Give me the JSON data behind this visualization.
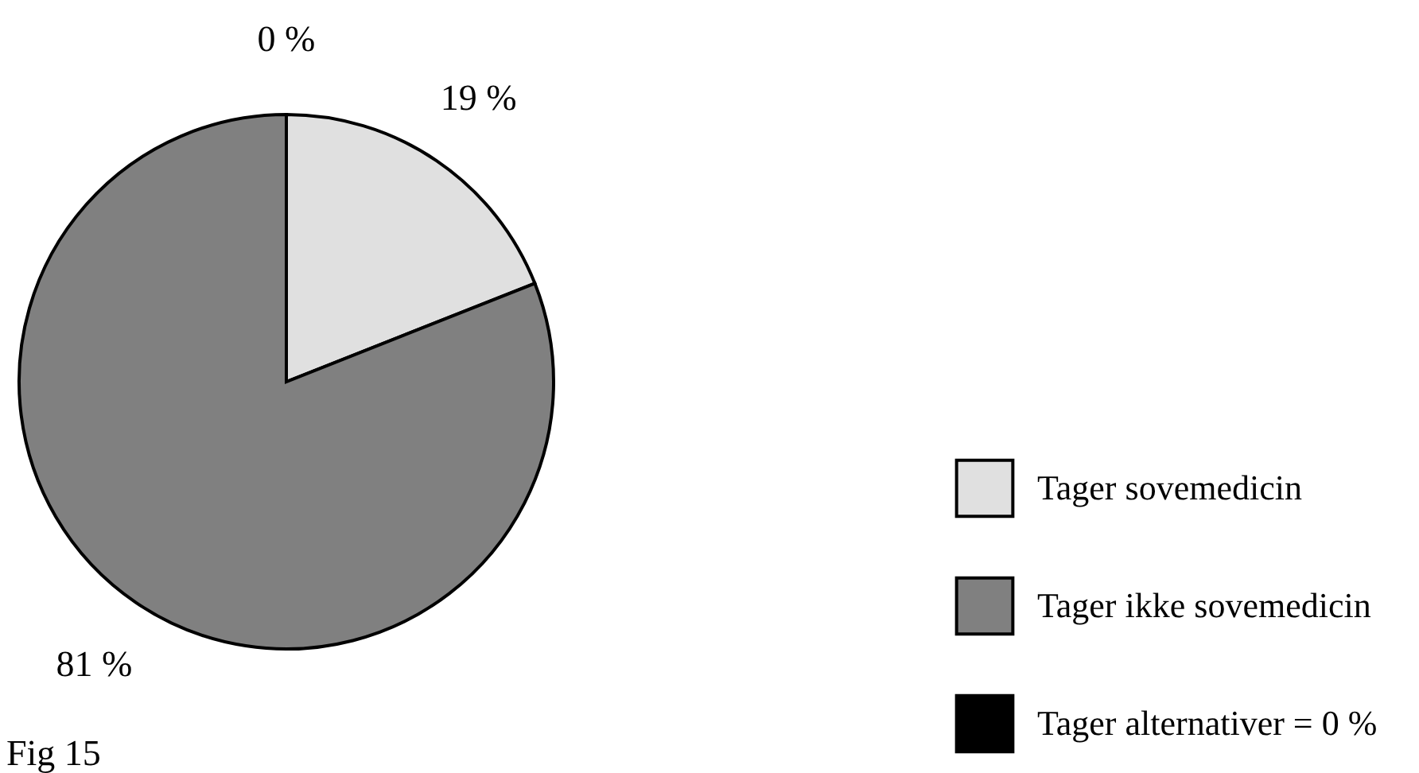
{
  "chart_data": {
    "type": "pie",
    "categories": [
      "Tager sovemedicin",
      "Tager ikke sovemedicin",
      "Tager alternativer = 0 %"
    ],
    "values": [
      19,
      81,
      0
    ],
    "colors": [
      "#e0e0e0",
      "#808080",
      "#000000"
    ],
    "value_labels": [
      "19 %",
      "81 %",
      "0 %"
    ],
    "legend": "bottom right",
    "annotations": [
      "Fig 15"
    ]
  }
}
